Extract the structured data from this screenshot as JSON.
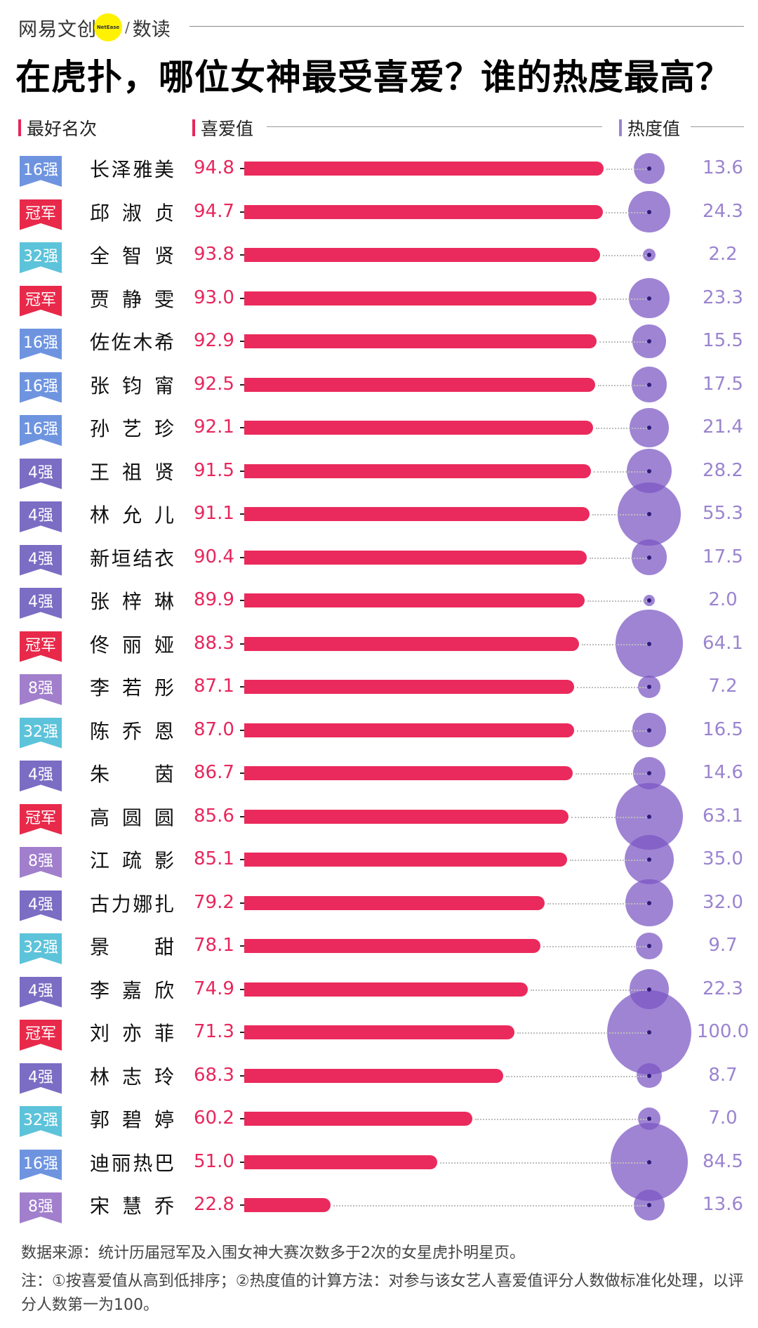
{
  "brand": {
    "name": "网易文创",
    "dot_text": "NetEase",
    "slash": "/",
    "sub": "数读"
  },
  "title": "在虎扑，哪位女神最受喜爱？谁的热度最高？",
  "columns": {
    "rank": "最好名次",
    "love": "喜爱值",
    "heat": "热度值"
  },
  "colors": {
    "bar": "#ea2a5c",
    "bubble": "#8a68cc",
    "love_text": "#e8265c",
    "heat_text": "#9b84cf",
    "badge_champion": "#e8294a",
    "badge_4": "#7b6cc4",
    "badge_8": "#a17fcc",
    "badge_16": "#6e94e0",
    "badge_32": "#5cc3da"
  },
  "rows": [
    {
      "rank": "16强",
      "name": "长泽雅美",
      "love": "94.8",
      "heat": "13.6"
    },
    {
      "rank": "冠军",
      "name": "邱淑贞",
      "love": "94.7",
      "heat": "24.3"
    },
    {
      "rank": "32强",
      "name": "全智贤",
      "love": "93.8",
      "heat": "2.2"
    },
    {
      "rank": "冠军",
      "name": "贾静雯",
      "love": "93.0",
      "heat": "23.3"
    },
    {
      "rank": "16强",
      "name": "佐佐木希",
      "love": "92.9",
      "heat": "15.5"
    },
    {
      "rank": "16强",
      "name": "张钧甯",
      "love": "92.5",
      "heat": "17.5"
    },
    {
      "rank": "16强",
      "name": "孙艺珍",
      "love": "92.1",
      "heat": "21.4"
    },
    {
      "rank": "4强",
      "name": "王祖贤",
      "love": "91.5",
      "heat": "28.2"
    },
    {
      "rank": "4强",
      "name": "林允儿",
      "love": "91.1",
      "heat": "55.3"
    },
    {
      "rank": "4强",
      "name": "新垣结衣",
      "love": "90.4",
      "heat": "17.5"
    },
    {
      "rank": "4强",
      "name": "张梓琳",
      "love": "89.9",
      "heat": "2.0"
    },
    {
      "rank": "冠军",
      "name": "佟丽娅",
      "love": "88.3",
      "heat": "64.1"
    },
    {
      "rank": "8强",
      "name": "李若彤",
      "love": "87.1",
      "heat": "7.2"
    },
    {
      "rank": "32强",
      "name": "陈乔恩",
      "love": "87.0",
      "heat": "16.5"
    },
    {
      "rank": "4强",
      "name": "朱茵",
      "love": "86.7",
      "heat": "14.6"
    },
    {
      "rank": "冠军",
      "name": "高圆圆",
      "love": "85.6",
      "heat": "63.1"
    },
    {
      "rank": "8强",
      "name": "江疏影",
      "love": "85.1",
      "heat": "35.0"
    },
    {
      "rank": "4强",
      "name": "古力娜扎",
      "love": "79.2",
      "heat": "32.0"
    },
    {
      "rank": "32强",
      "name": "景甜",
      "love": "78.1",
      "heat": "9.7"
    },
    {
      "rank": "4强",
      "name": "李嘉欣",
      "love": "74.9",
      "heat": "22.3"
    },
    {
      "rank": "冠军",
      "name": "刘亦菲",
      "love": "71.3",
      "heat": "100.0"
    },
    {
      "rank": "4强",
      "name": "林志玲",
      "love": "68.3",
      "heat": "8.7"
    },
    {
      "rank": "32强",
      "name": "郭碧婷",
      "love": "60.2",
      "heat": "7.0"
    },
    {
      "rank": "16强",
      "name": "迪丽热巴",
      "love": "51.0",
      "heat": "84.5"
    },
    {
      "rank": "8强",
      "name": "宋慧乔",
      "love": "22.8",
      "heat": "13.6"
    }
  ],
  "footer": {
    "source": "数据来源：统计历届冠军及入围女神大赛次数多于2次的女星虎扑明星页。",
    "note": "注：①按喜爱值从高到低排序；②热度值的计算方法：对参与该女艺人喜爱值评分人数做标准化处理，以评分人数第一为100。"
  },
  "chart_data": {
    "type": "bar",
    "title": "在虎扑，哪位女神最受喜爱？谁的热度最高？",
    "xlabel": "喜爱值",
    "ylabel": "",
    "orientation": "horizontal",
    "categories": [
      "长泽雅美",
      "邱淑贞",
      "全智贤",
      "贾静雯",
      "佐佐木希",
      "张钧甯",
      "孙艺珍",
      "王祖贤",
      "林允儿",
      "新垣结衣",
      "张梓琳",
      "佟丽娅",
      "李若彤",
      "陈乔恩",
      "朱茵",
      "高圆圆",
      "江疏影",
      "古力娜扎",
      "景甜",
      "李嘉欣",
      "刘亦菲",
      "林志玲",
      "郭碧婷",
      "迪丽热巴",
      "宋慧乔"
    ],
    "series": [
      {
        "name": "喜爱值",
        "type": "bar",
        "values": [
          94.8,
          94.7,
          93.8,
          93.0,
          92.9,
          92.5,
          92.1,
          91.5,
          91.1,
          90.4,
          89.9,
          88.3,
          87.1,
          87.0,
          86.7,
          85.6,
          85.1,
          79.2,
          78.1,
          74.9,
          71.3,
          68.3,
          60.2,
          51.0,
          22.8
        ]
      },
      {
        "name": "热度值",
        "type": "bubble",
        "values": [
          13.6,
          24.3,
          2.2,
          23.3,
          15.5,
          17.5,
          21.4,
          28.2,
          55.3,
          17.5,
          2.0,
          64.1,
          7.2,
          16.5,
          14.6,
          63.1,
          35.0,
          32.0,
          9.7,
          22.3,
          100.0,
          8.7,
          7.0,
          84.5,
          13.6
        ]
      }
    ],
    "labels": {
      "最好名次": [
        "16强",
        "冠军",
        "32强",
        "冠军",
        "16强",
        "16强",
        "16强",
        "4强",
        "4强",
        "4强",
        "4强",
        "冠军",
        "8强",
        "32强",
        "4强",
        "冠军",
        "8强",
        "4强",
        "32强",
        "4强",
        "冠军",
        "4强",
        "32强",
        "16强",
        "8强"
      ]
    },
    "xlim": [
      0,
      100
    ],
    "grid": false,
    "legend": "none",
    "annotations": [
      "数据来源：统计历届冠军及入围女神大赛次数多于2次的女星虎扑明星页。",
      "注：①按喜爱值从高到低排序；②热度值的计算方法：对参与该女艺人喜爱值评分人数做标准化处理，以评分人数第一为100。"
    ]
  }
}
